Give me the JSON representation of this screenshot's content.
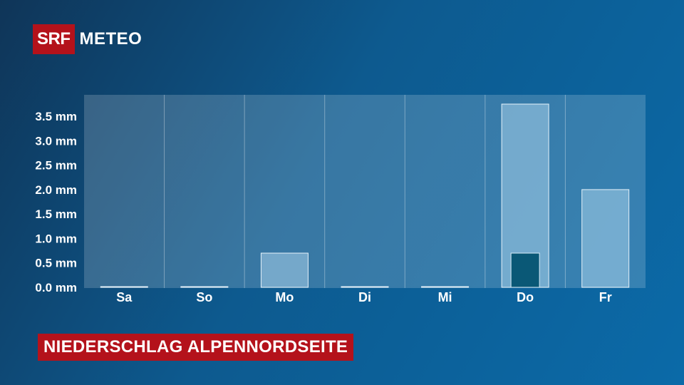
{
  "brand": {
    "logo_box": "SRF",
    "logo_text": "METEO"
  },
  "caption": "NIEDERSCHLAG ALPENNORDSEITE",
  "colors": {
    "caption_bg": "#b4121b",
    "bar_fill": "#a8d0ea",
    "inner_bar_fill": "#0a5876"
  },
  "chart_data": {
    "type": "bar",
    "categories": [
      "Sa",
      "So",
      "Mo",
      "Di",
      "Mi",
      "Do",
      "Fr"
    ],
    "series": [
      {
        "values": [
          0.0,
          0.0,
          0.7,
          0.0,
          0.0,
          3.75,
          2.0
        ]
      },
      {
        "values": [
          0,
          0,
          0,
          0,
          0,
          0.7,
          0
        ]
      }
    ],
    "ytick_labels": [
      "0.0 mm",
      "0.5 mm",
      "1.0 mm",
      "1.5 mm",
      "2.0 mm",
      "2.5 mm",
      "3.0 mm",
      "3.5 mm"
    ],
    "ytick_values": [
      0,
      0.5,
      1.0,
      1.5,
      2.0,
      2.5,
      3.0,
      3.5
    ],
    "ylim": [
      0,
      4.0
    ],
    "grid": "vertical",
    "title": "",
    "xlabel": "",
    "ylabel": ""
  }
}
